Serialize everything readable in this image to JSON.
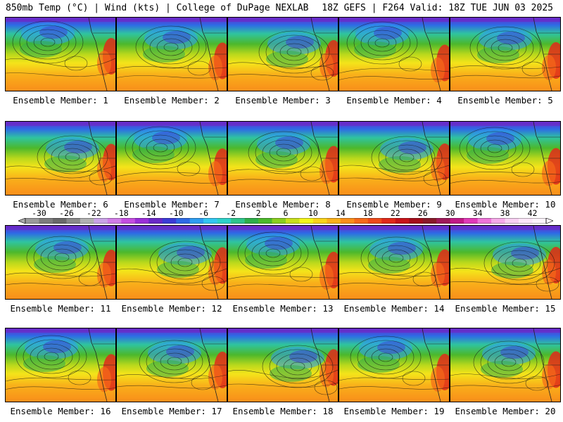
{
  "header": {
    "left": "850mb Temp (°C) | Wind (kts) | College of DuPage NEXLAB",
    "right": "18Z GEFS | F264 Valid: 18Z TUE JUN 03 2025"
  },
  "panels": [
    {
      "label": "Ensemble Member: 1"
    },
    {
      "label": "Ensemble Member: 2"
    },
    {
      "label": "Ensemble Member: 3"
    },
    {
      "label": "Ensemble Member: 4"
    },
    {
      "label": "Ensemble Member: 5"
    },
    {
      "label": "Ensemble Member: 6"
    },
    {
      "label": "Ensemble Member: 7"
    },
    {
      "label": "Ensemble Member: 8"
    },
    {
      "label": "Ensemble Member: 9"
    },
    {
      "label": "Ensemble Member: 10"
    },
    {
      "label": "Ensemble Member: 11"
    },
    {
      "label": "Ensemble Member: 12"
    },
    {
      "label": "Ensemble Member: 13"
    },
    {
      "label": "Ensemble Member: 14"
    },
    {
      "label": "Ensemble Member: 15"
    },
    {
      "label": "Ensemble Member: 16"
    },
    {
      "label": "Ensemble Member: 17"
    },
    {
      "label": "Ensemble Member: 18"
    },
    {
      "label": "Ensemble Member: 19"
    },
    {
      "label": "Ensemble Member: 20"
    }
  ],
  "colorbar": {
    "min": -32,
    "max": 44,
    "tick_labels": [
      "-30",
      "-26",
      "-22",
      "-18",
      "-14",
      "-10",
      "-6",
      "-2",
      "2",
      "6",
      "10",
      "14",
      "18",
      "22",
      "26",
      "30",
      "34",
      "38",
      "42"
    ],
    "colors": [
      "#9a9a9a",
      "#7d7d7d",
      "#6a6a6a",
      "#8a8a8a",
      "#b0b0b0",
      "#c9a3e6",
      "#d07de6",
      "#c44ee0",
      "#9b2fd8",
      "#6a2ac8",
      "#3c3cd6",
      "#2e6ae6",
      "#2f9df0",
      "#33c6f0",
      "#2ed0c8",
      "#2fc48c",
      "#2faf4a",
      "#4cb82c",
      "#8acd1f",
      "#c8df1c",
      "#f4f41a",
      "#f8d21a",
      "#f9b01a",
      "#f98e1a",
      "#f56a1a",
      "#ee4a1a",
      "#e02a1a",
      "#c8141a",
      "#a50f1c",
      "#8a1a2a",
      "#a01a5a",
      "#c21a86",
      "#e03ab8",
      "#ee74d8",
      "#f5aae8",
      "#f8d0f2",
      "#fbe6f8",
      "#fdf4fb"
    ]
  }
}
